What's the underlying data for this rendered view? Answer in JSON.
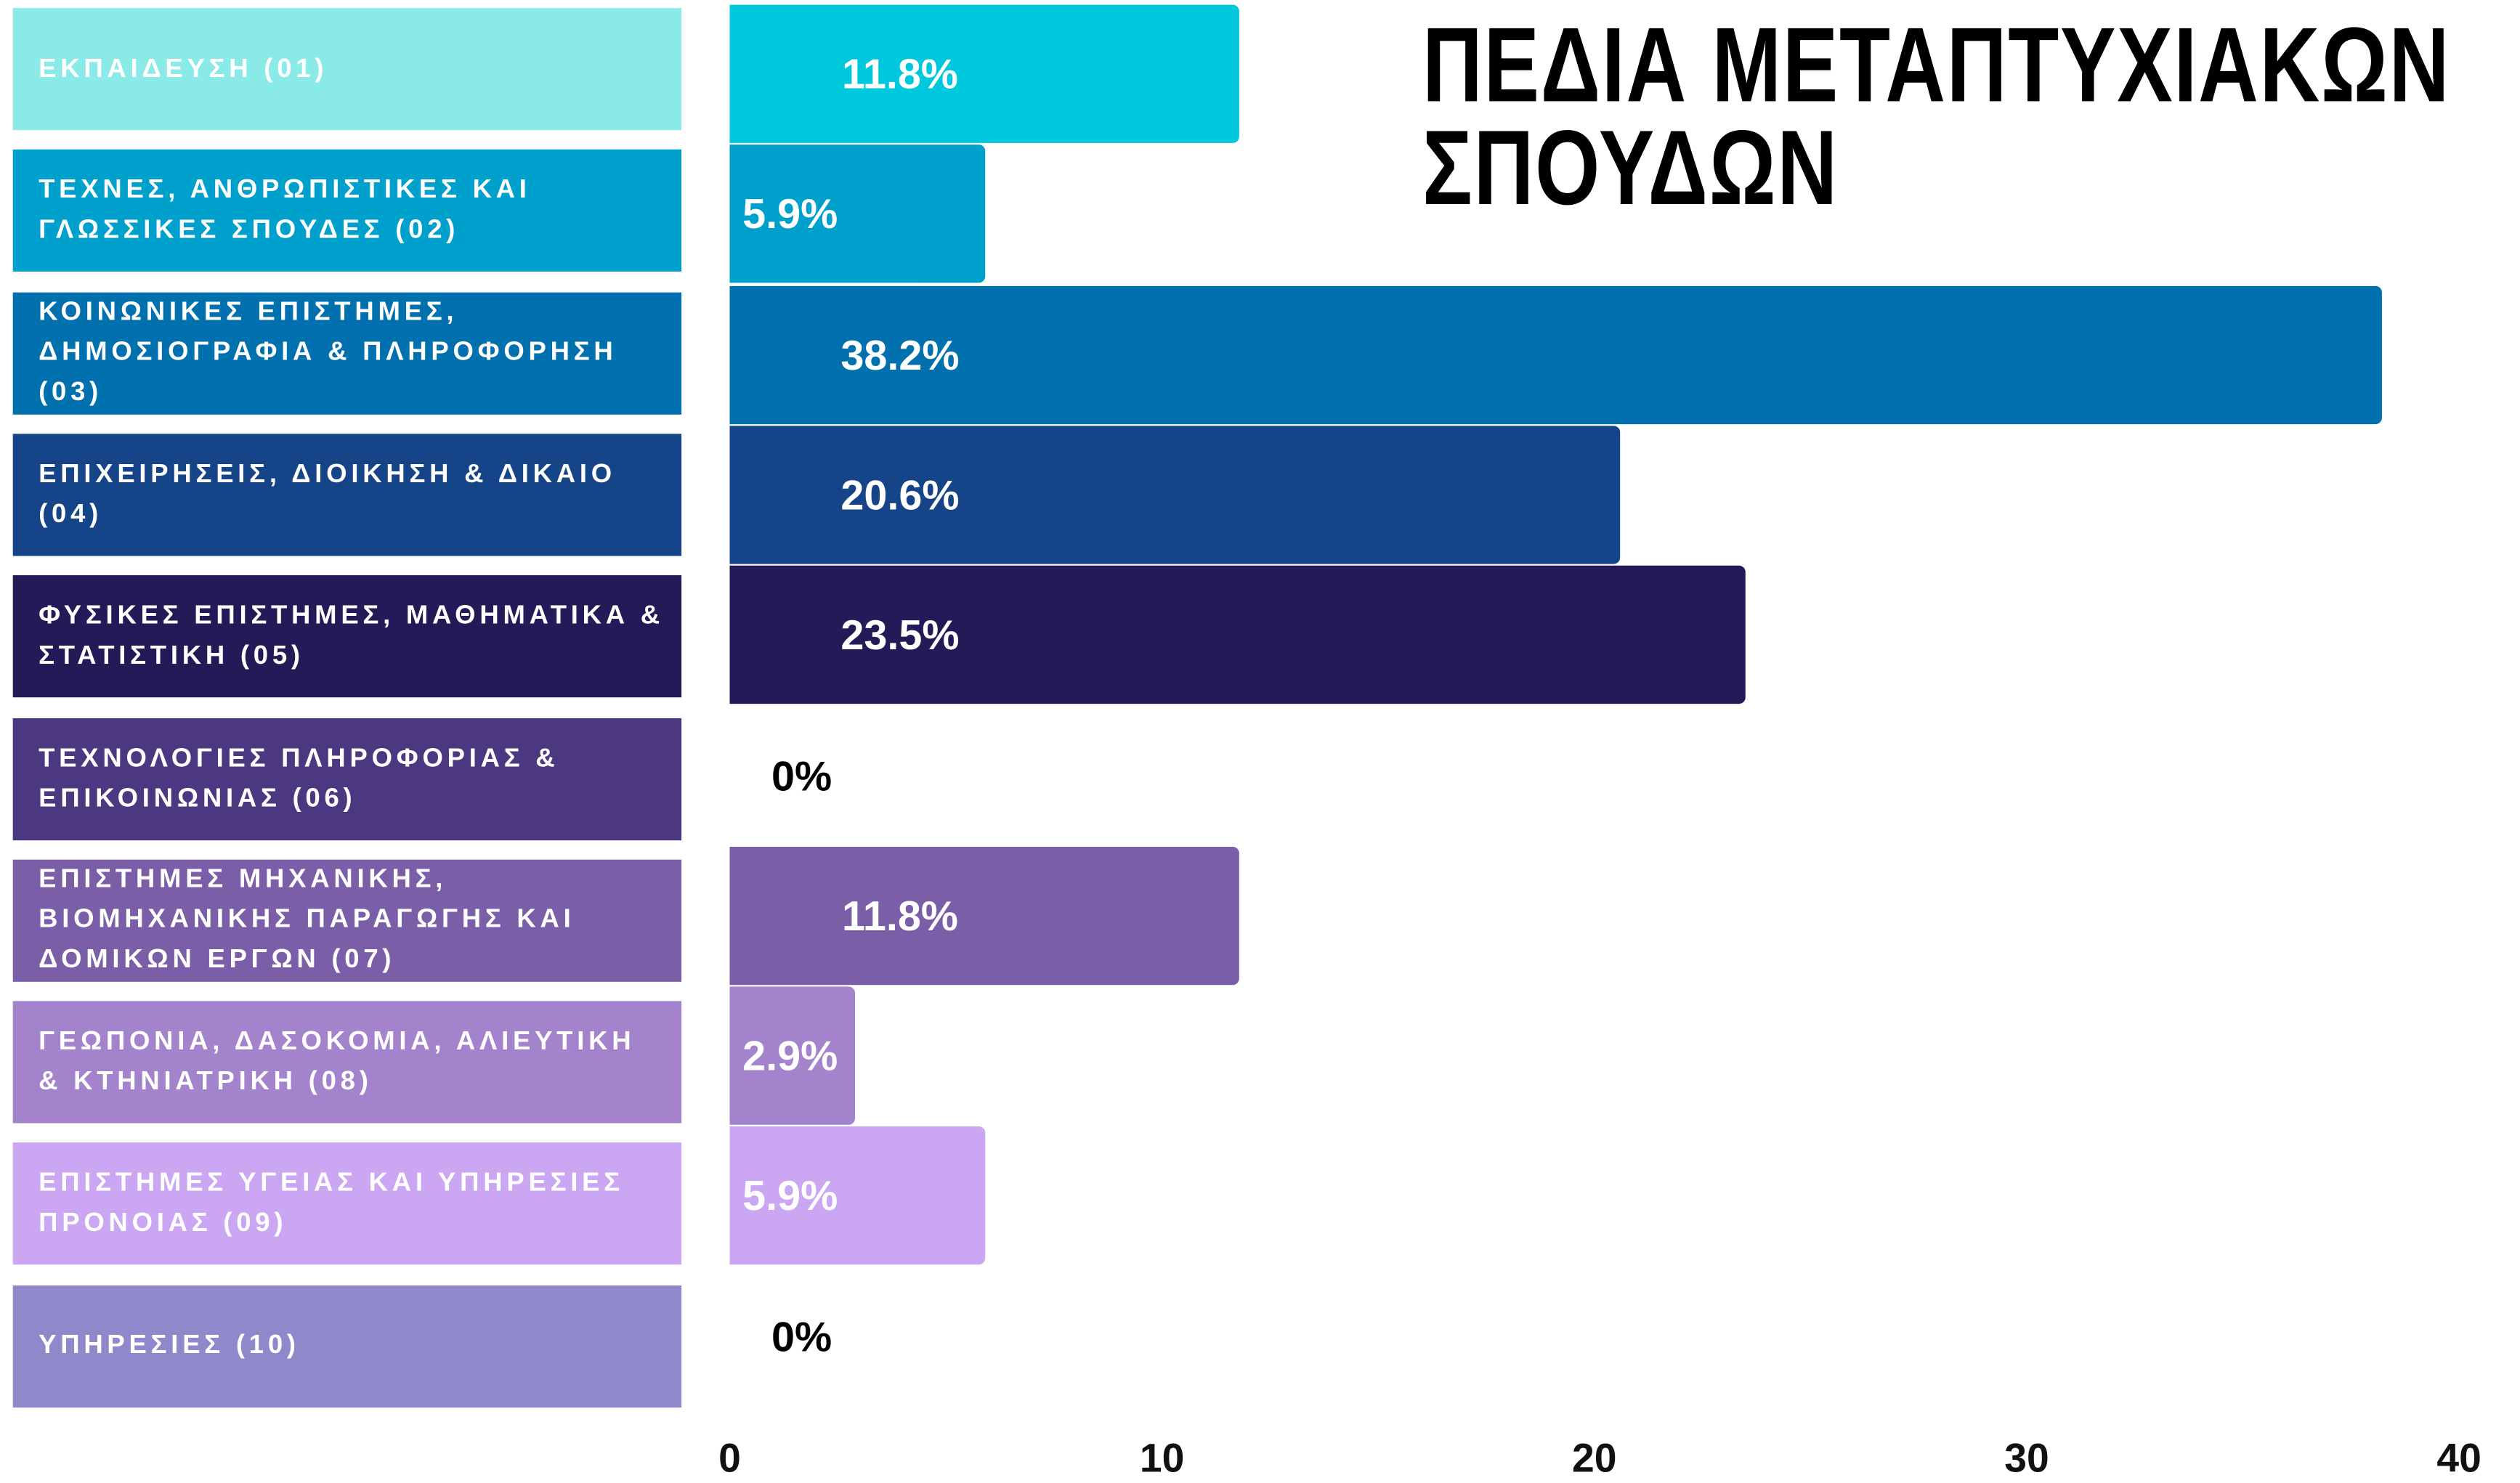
{
  "chart_data": {
    "type": "bar",
    "orientation": "horizontal",
    "title": "ΠΕΔΙΑ ΜΕΤΑΠΤΥΧΙΑΚΩΝ ΣΠΟΥΔΩΝ",
    "categories": [
      "ΕΚΠΑΙΔΕΥΣΗ (01)",
      "ΤΕΧΝΕΣ, ΑΝΘΡΩΠΙΣΤΙΚΕΣ ΚΑΙ ΓΛΩΣΣΙΚΕΣ ΣΠΟΥΔΕΣ (02)",
      "ΚΟΙΝΩΝΙΚΕΣ ΕΠΙΣΤΗΜΕΣ, ΔΗΜΟΣΙΟΓΡΑΦΙΑ & ΠΛΗΡΟΦΟΡΗΣΗ (03)",
      "ΕΠΙΧΕΙΡΗΣΕΙΣ, ΔΙΟΙΚΗΣΗ & ΔΙΚΑΙΟ (04)",
      "ΦΥΣΙΚΕΣ ΕΠΙΣΤΗΜΕΣ, ΜΑΘΗΜΑΤΙΚΑ & ΣΤΑΤΙΣΤΙΚΗ (05)",
      "ΤΕΧΝΟΛΟΓΙΕΣ ΠΛΗΡΟΦΟΡΙΑΣ & ΕΠΙΚΟΙΝΩΝΙΑΣ (06)",
      "ΕΠΙΣΤΗΜΕΣ ΜΗΧΑΝΙΚΗΣ, ΒΙΟΜΗΧΑΝΙΚΗΣ ΠΑΡΑΓΩΓΗΣ ΚΑΙ ΔΟΜΙΚΩΝ ΕΡΓΩΝ (07)",
      "ΓΕΩΠΟΝΙΑ, ΔΑΣΟΚΟΜΙΑ, ΑΛΙΕΥΤΙΚΗ & ΚΤΗΝΙΑΤΡΙΚΗ (08)",
      "ΕΠΙΣΤΗΜΕΣ ΥΓΕΙΑΣ ΚΑΙ ΥΠΗΡΕΣΙΕΣ ΠΡΟΝΟΙΑΣ (09)",
      "ΥΠΗΡΕΣΙΕΣ (10)"
    ],
    "values": [
      11.8,
      5.9,
      38.2,
      20.6,
      23.5,
      0,
      11.8,
      2.9,
      5.9,
      0
    ],
    "value_labels": [
      "11.8%",
      "5.9%",
      "38.2%",
      "20.6%",
      "23.5%",
      "0%",
      "11.8%",
      "2.9%",
      "5.9%",
      "0%"
    ],
    "colors": [
      "#00c8dc",
      "#00a0cd",
      "#0070ae",
      "#164489",
      "#231a57",
      "#4b3880",
      "#7a5ea8",
      "#a283cc",
      "#cba6f3",
      "#8f88cb"
    ],
    "label_colors": [
      "#8aeae8",
      "#00a0cd",
      "#0070ae",
      "#164489",
      "#231a57",
      "#4b3880",
      "#7a5ea8",
      "#a283cc",
      "#cba6f3",
      "#8f88cb"
    ],
    "xlim": [
      0,
      40
    ],
    "xticks": [
      0,
      10,
      20,
      30,
      40
    ]
  }
}
